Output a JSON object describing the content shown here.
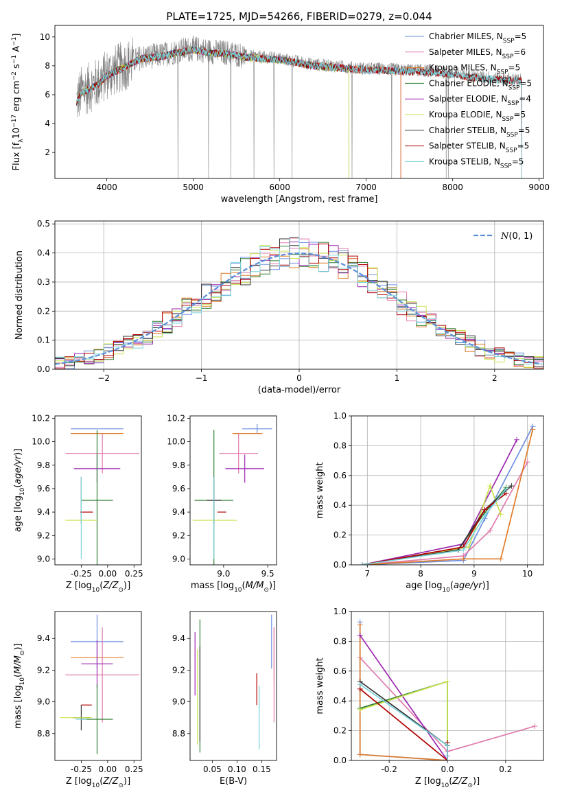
{
  "figure_title": "PLATE=1725, MJD=54266, FIBERID=0279, z=0.044",
  "colors": {
    "Chabrier MILES": "#6d8fe0",
    "Salpeter MILES": "#e07aae",
    "Kroupa MILES": "#e07b2a",
    "Chabrier ELODIE": "#2e7d32",
    "Salpeter ELODIE": "#9c27b0",
    "Kroupa ELODIE": "#c8e24a",
    "Chabrier STELIB": "#333333",
    "Salpeter STELIB": "#b00000",
    "Kroupa STELIB": "#7ad3dc",
    "data": "#808080",
    "normal_pdf": "#5b8fd9"
  },
  "chart_data": [
    {
      "id": "spectrum",
      "type": "line",
      "xlabel": "wavelength [Angstrom, rest frame]",
      "ylabel": "Flux [f_λ10^-17 erg cm^-2 s^-1 A^-1]",
      "xlim": [
        3400,
        9050
      ],
      "ylim": [
        0.2,
        10.8
      ],
      "xticks": [
        4000,
        5000,
        6000,
        7000,
        8000,
        9000
      ],
      "yticks": [
        2,
        4,
        6,
        8,
        10
      ],
      "legend_position": "top-right",
      "legend": [
        {
          "label": "Chabrier MILES, N",
          "sub": "SSP",
          "suffix": "=5"
        },
        {
          "label": "Salpeter MILES, N",
          "sub": "SSP",
          "suffix": "=6"
        },
        {
          "label": "Kroupa MILES, N",
          "sub": "SSP",
          "suffix": "=5"
        },
        {
          "label": "Chabrier ELODIE, N",
          "sub": "SSP",
          "suffix": "=5"
        },
        {
          "label": "Salpeter ELODIE, N",
          "sub": "SSP",
          "suffix": "=4"
        },
        {
          "label": "Kroupa ELODIE, N",
          "sub": "SSP",
          "suffix": "=5"
        },
        {
          "label": "Chabrier STELIB, N",
          "sub": "SSP",
          "suffix": "=5"
        },
        {
          "label": "Salpeter STELIB, N",
          "sub": "SSP",
          "suffix": "=5"
        },
        {
          "label": "Kroupa STELIB, N",
          "sub": "SSP",
          "suffix": "=5"
        }
      ],
      "data_envelope": {
        "wavelength": [
          3650,
          3700,
          3800,
          3900,
          4000,
          4200,
          4400,
          4600,
          4800,
          5000,
          5200,
          5400,
          5600,
          5800,
          6000,
          6200,
          6400,
          6600,
          6800,
          7000,
          7200,
          7400,
          7600,
          7800,
          8000,
          8200,
          8400,
          8600,
          8800
        ],
        "flux": [
          5.5,
          6.2,
          6.5,
          6.8,
          7.4,
          8.0,
          8.6,
          8.7,
          9.0,
          9.2,
          9.0,
          8.9,
          8.7,
          8.6,
          8.5,
          8.3,
          8.1,
          8.0,
          7.9,
          7.8,
          7.8,
          7.7,
          7.7,
          7.6,
          7.5,
          7.3,
          7.2,
          7.1,
          7.0
        ]
      },
      "model_wavelength_max": {
        "MILES": 7400,
        "ELODIE": 6800,
        "STELIB": 8800
      }
    },
    {
      "id": "residuals",
      "type": "bar",
      "xlabel": "(data-model)/error",
      "ylabel": "Normed distribution",
      "xlim": [
        -2.5,
        2.5
      ],
      "ylim": [
        0,
        0.51
      ],
      "xticks": [
        -2,
        -1,
        0,
        1,
        2
      ],
      "yticks": [
        0.0,
        0.1,
        0.2,
        0.3,
        0.4,
        0.5
      ],
      "grid": true,
      "legend_position": "top-right",
      "legend_label": "N(0, 1)",
      "bin_width": 0.1,
      "hist_envelope_x": [
        -2.5,
        -2.0,
        -1.5,
        -1.0,
        -0.5,
        0.0,
        0.5,
        1.0,
        1.5,
        2.0,
        2.5
      ],
      "hist_envelope_y": [
        0.02,
        0.05,
        0.13,
        0.24,
        0.35,
        0.4,
        0.36,
        0.24,
        0.13,
        0.05,
        0.02
      ]
    },
    {
      "id": "age_vs_Z",
      "type": "scatter",
      "xlabel": "Z [log10(Z/Z⊙)]",
      "ylabel": "age  [log10(age/yr)]",
      "xlim": [
        -0.5,
        0.32
      ],
      "ylim": [
        8.95,
        10.22
      ],
      "xticks": [
        -0.25,
        0.0,
        0.25
      ],
      "yticks": [
        9.0,
        9.2,
        9.4,
        9.6,
        9.8,
        10.0,
        10.2
      ],
      "points": [
        {
          "model": "Chabrier MILES",
          "x": -0.1,
          "xerr": 0.25,
          "y": 10.11,
          "yerr": 0.0
        },
        {
          "model": "Kroupa MILES",
          "x": -0.1,
          "xerr": 0.25,
          "y": 10.07,
          "yerr": 0.0
        },
        {
          "model": "Salpeter MILES",
          "x": -0.05,
          "xerr": 0.35,
          "y": 9.9,
          "yerr": 0.17
        },
        {
          "model": "Salpeter ELODIE",
          "x": -0.1,
          "xerr": 0.22,
          "y": 9.77,
          "yerr": 0.12
        },
        {
          "model": "Chabrier ELODIE",
          "x": -0.1,
          "xerr": 0.15,
          "y": 9.5,
          "yerr": 0.6
        },
        {
          "model": "Chabrier STELIB",
          "x": -0.25,
          "xerr": 0.0,
          "y": 9.5,
          "yerr": 0.2
        },
        {
          "model": "Salpeter STELIB",
          "x": -0.2,
          "xerr": 0.06,
          "y": 9.4,
          "yerr": 0.0
        },
        {
          "model": "Kroupa ELODIE",
          "x": -0.25,
          "xerr": 0.15,
          "y": 9.33,
          "yerr": 0.0
        },
        {
          "model": "Kroupa STELIB",
          "x": -0.25,
          "xerr": 0.0,
          "y": 9.35,
          "yerr": 0.35
        }
      ]
    },
    {
      "id": "age_vs_mass",
      "type": "scatter",
      "xlabel": "mass [log10(M/M⊙)]",
      "xlim": [
        8.62,
        9.6
      ],
      "ylim": [
        8.95,
        10.22
      ],
      "xticks": [
        9.0,
        9.5
      ],
      "yticks": [
        9.0,
        9.2,
        9.4,
        9.6,
        9.8,
        10.0,
        10.2
      ],
      "points": [
        {
          "model": "Chabrier MILES",
          "x": 9.38,
          "xerr": 0.17,
          "y": 10.11,
          "yerr": 0.04
        },
        {
          "model": "Kroupa MILES",
          "x": 9.27,
          "xerr": 0.17,
          "y": 10.07,
          "yerr": 0.0
        },
        {
          "model": "Salpeter MILES",
          "x": 9.17,
          "xerr": 0.22,
          "y": 9.9,
          "yerr": 0.17
        },
        {
          "model": "Salpeter ELODIE",
          "x": 9.24,
          "xerr": 0.22,
          "y": 9.77,
          "yerr": 0.12
        },
        {
          "model": "Chabrier ELODIE",
          "x": 8.89,
          "xerr": 0.22,
          "y": 9.5,
          "yerr": 0.6
        },
        {
          "model": "Chabrier STELIB",
          "x": 8.89,
          "xerr": 0.08,
          "y": 9.5,
          "yerr": 0.2
        },
        {
          "model": "Salpeter STELIB",
          "x": 8.98,
          "xerr": 0.05,
          "y": 9.4,
          "yerr": 0.0
        },
        {
          "model": "Kroupa ELODIE",
          "x": 8.9,
          "xerr": 0.25,
          "y": 9.33,
          "yerr": 0.0
        },
        {
          "model": "Kroupa STELIB",
          "x": 8.89,
          "xerr": 0.0,
          "y": 9.35,
          "yerr": 0.35
        }
      ]
    },
    {
      "id": "massweight_vs_age",
      "type": "line",
      "xlabel": "age  [log10(age/yr)]",
      "ylabel": "mass weight",
      "xlim": [
        6.7,
        10.3
      ],
      "ylim": [
        0.0,
        1.0
      ],
      "xticks": [
        7,
        8,
        9,
        10
      ],
      "yticks": [
        0.0,
        0.2,
        0.4,
        0.6,
        0.8,
        1.0
      ],
      "grid": true,
      "series": [
        {
          "model": "Chabrier MILES",
          "x": [
            6.9,
            8.8,
            9.2,
            10.1
          ],
          "values": [
            0.0,
            0.03,
            0.31,
            0.93
          ]
        },
        {
          "model": "Salpeter MILES",
          "x": [
            6.9,
            8.8,
            9.3,
            10.0
          ],
          "values": [
            0.0,
            0.06,
            0.23,
            0.69
          ]
        },
        {
          "model": "Kroupa MILES",
          "x": [
            6.9,
            8.8,
            9.5,
            10.1
          ],
          "values": [
            0.0,
            0.04,
            0.04,
            0.91
          ]
        },
        {
          "model": "Chabrier ELODIE",
          "x": [
            6.9,
            8.7,
            9.2,
            9.6
          ],
          "values": [
            0.0,
            0.1,
            0.35,
            0.52
          ]
        },
        {
          "model": "Salpeter ELODIE",
          "x": [
            6.9,
            8.8,
            9.8
          ],
          "values": [
            0.0,
            0.14,
            0.84
          ]
        },
        {
          "model": "Kroupa ELODIE",
          "x": [
            6.9,
            8.9,
            9.3,
            9.5
          ],
          "values": [
            0.0,
            0.12,
            0.53,
            0.34
          ]
        },
        {
          "model": "Chabrier STELIB",
          "x": [
            6.9,
            8.7,
            9.2,
            9.7
          ],
          "values": [
            0.0,
            0.1,
            0.37,
            0.53
          ]
        },
        {
          "model": "Salpeter STELIB",
          "x": [
            6.9,
            8.8,
            9.2,
            9.6
          ],
          "values": [
            0.0,
            0.12,
            0.37,
            0.48
          ]
        },
        {
          "model": "Kroupa STELIB",
          "x": [
            6.9,
            8.8,
            9.2,
            9.6
          ],
          "values": [
            0.0,
            0.1,
            0.33,
            0.51
          ]
        }
      ]
    },
    {
      "id": "mass_vs_Z",
      "type": "scatter",
      "xlabel": "Z [log10(Z/Z⊙)]",
      "ylabel": "mass [log10(M/M⊙)]",
      "xlim": [
        -0.5,
        0.32
      ],
      "ylim": [
        8.63,
        9.57
      ],
      "xticks": [
        -0.25,
        0.0,
        0.25
      ],
      "yticks": [
        8.8,
        9.0,
        9.2,
        9.4
      ],
      "points": [
        {
          "model": "Chabrier MILES",
          "x": -0.1,
          "xerr": 0.25,
          "y": 9.38,
          "yerr": 0.17
        },
        {
          "model": "Kroupa MILES",
          "x": -0.1,
          "xerr": 0.25,
          "y": 9.28,
          "yerr": 0.0
        },
        {
          "model": "Salpeter MILES",
          "x": -0.05,
          "xerr": 0.35,
          "y": 9.17,
          "yerr": 0.3
        },
        {
          "model": "Salpeter ELODIE",
          "x": -0.1,
          "xerr": 0.15,
          "y": 9.24,
          "yerr": 0.15
        },
        {
          "model": "Chabrier ELODIE",
          "x": -0.1,
          "xerr": 0.15,
          "y": 8.89,
          "yerr": 0.22
        },
        {
          "model": "Chabrier STELIB",
          "x": -0.25,
          "xerr": 0.08,
          "y": 8.9,
          "yerr": 0.08
        },
        {
          "model": "Salpeter STELIB",
          "x": -0.2,
          "xerr": 0.05,
          "y": 8.98,
          "yerr": 0.0
        },
        {
          "model": "Kroupa ELODIE",
          "x": -0.3,
          "xerr": 0.15,
          "y": 8.9,
          "yerr": 0.0
        },
        {
          "model": "Kroupa STELIB",
          "x": -0.25,
          "xerr": 0.0,
          "y": 8.89,
          "yerr": 0.0
        }
      ]
    },
    {
      "id": "mass_vs_ebv",
      "type": "scatter",
      "xlabel": "E(B-V)",
      "xlim": [
        0.005,
        0.18
      ],
      "ylim": [
        8.63,
        9.57
      ],
      "xticks": [
        0.05,
        0.1,
        0.15
      ],
      "yticks": [
        8.8,
        9.0,
        9.2,
        9.4
      ],
      "points": [
        {
          "model": "Chabrier MILES",
          "x": 0.17,
          "y": 9.38,
          "yerr": 0.17
        },
        {
          "model": "Kroupa MILES",
          "x": 0.175,
          "y": 9.3,
          "yerr": 0.17
        },
        {
          "model": "Salpeter MILES",
          "x": 0.175,
          "y": 9.17,
          "yerr": 0.3
        },
        {
          "model": "Salpeter ELODIE",
          "x": 0.015,
          "y": 9.24,
          "yerr": 0.2
        },
        {
          "model": "Chabrier ELODIE",
          "x": 0.025,
          "y": 9.1,
          "yerr": 0.42
        },
        {
          "model": "Chabrier STELIB",
          "x": 0.025,
          "y": 9.05,
          "yerr": 0.3
        },
        {
          "model": "Salpeter STELIB",
          "x": 0.14,
          "y": 9.08,
          "yerr": 0.1
        },
        {
          "model": "Kroupa ELODIE",
          "x": 0.02,
          "y": 9.03,
          "yerr": 0.3
        },
        {
          "model": "Kroupa STELIB",
          "x": 0.145,
          "y": 8.9,
          "yerr": 0.2
        }
      ]
    },
    {
      "id": "massweight_vs_Z",
      "type": "line",
      "xlabel": "Z [log10(Z/Z⊙)]",
      "ylabel": "mass weight",
      "xlim": [
        -0.33,
        0.33
      ],
      "ylim": [
        0.0,
        1.0
      ],
      "xticks": [
        -0.2,
        0.0,
        0.2
      ],
      "yticks": [
        0.0,
        0.2,
        0.4,
        0.6,
        0.8,
        1.0
      ],
      "grid": true,
      "series": [
        {
          "model": "Chabrier MILES",
          "x": [
            -0.3,
            -0.3,
            0.0,
            0.0
          ],
          "values": [
            0.93,
            0.04,
            0.0,
            0.03
          ]
        },
        {
          "model": "Salpeter MILES",
          "x": [
            -0.3,
            0.0,
            0.3
          ],
          "values": [
            0.69,
            0.06,
            0.23
          ]
        },
        {
          "model": "Kroupa MILES",
          "x": [
            -0.3,
            -0.3,
            0.0
          ],
          "values": [
            0.91,
            0.04,
            0.0
          ]
        },
        {
          "model": "Chabrier ELODIE",
          "x": [
            -0.3,
            0.0,
            0.0
          ],
          "values": [
            0.35,
            0.53,
            0.1
          ]
        },
        {
          "model": "Salpeter ELODIE",
          "x": [
            -0.3,
            0.0
          ],
          "values": [
            0.84,
            0.0
          ]
        },
        {
          "model": "Kroupa ELODIE",
          "x": [
            -0.3,
            0.0,
            0.0
          ],
          "values": [
            0.34,
            0.53,
            0.12
          ]
        },
        {
          "model": "Chabrier STELIB",
          "x": [
            -0.3,
            0.0,
            0.0
          ],
          "values": [
            0.53,
            0.1,
            0.0
          ]
        },
        {
          "model": "Salpeter STELIB",
          "x": [
            -0.3,
            0.0,
            0.0
          ],
          "values": [
            0.48,
            0.0,
            0.12
          ]
        },
        {
          "model": "Kroupa STELIB",
          "x": [
            -0.3,
            0.0,
            0.0
          ],
          "values": [
            0.51,
            0.1,
            0.0
          ]
        }
      ]
    }
  ]
}
